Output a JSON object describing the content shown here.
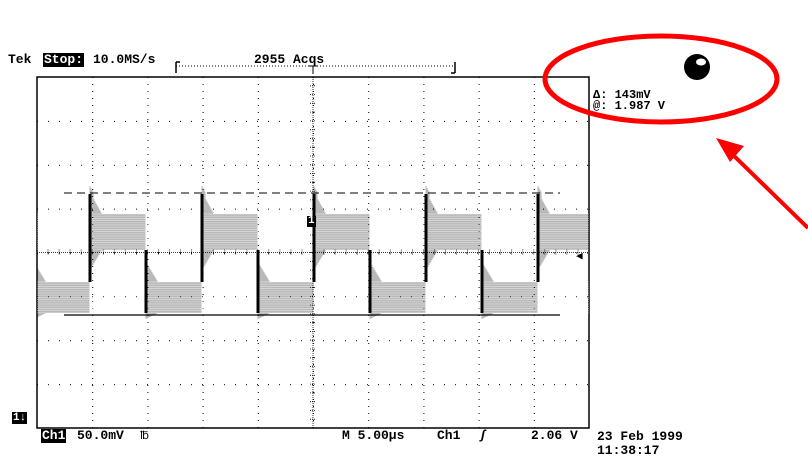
{
  "header": {
    "brand": "Tek",
    "run_state": "Stop:",
    "sample_rate": "10.0MS/s",
    "acquisitions": "2955 Acqs"
  },
  "cursor_readout": {
    "delta": "Δ: 143mV",
    "at": "@: 1.987 V"
  },
  "trace_marker": "1",
  "channel_ground_marker": "1↓",
  "trigger_level_arrow": "◀",
  "footer": {
    "channel": "Ch1",
    "volts_per_div": "50.0mV",
    "bw_symbol": "℔",
    "timebase": "M 5.00µs",
    "trigger_source": "Ch1",
    "trigger_slope": "ʃ",
    "trigger_level": "2.06 V"
  },
  "datetime": {
    "date": "23 Feb 1999",
    "time": "11:38:17"
  },
  "annotation": {
    "circle_color": "#ff0000",
    "arrow_color": "#ff0000"
  }
}
